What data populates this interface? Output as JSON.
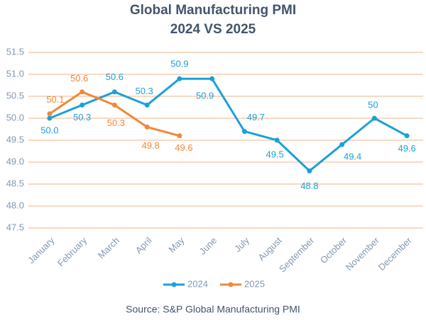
{
  "chart_data": {
    "type": "line",
    "title": "Global Manufacturing PMI",
    "subtitle": "2024 VS 2025",
    "source": "Source: S&P Global Manufacturing PMI",
    "categories": [
      "January",
      "February",
      "March",
      "April",
      "May",
      "June",
      "July",
      "August",
      "September",
      "October",
      "November",
      "December"
    ],
    "series": [
      {
        "name": "2024",
        "color": "#1ba1d8",
        "values": [
          50.0,
          50.3,
          50.6,
          50.3,
          50.9,
          50.9,
          49.7,
          49.5,
          48.8,
          49.4,
          50,
          49.6
        ],
        "value_labels": [
          "50.0",
          "50.3",
          "50.6",
          "50.3",
          "50.9",
          "50.9",
          "49.7",
          "49.5",
          "48.8",
          "49.4",
          "50",
          "49.6"
        ]
      },
      {
        "name": "2025",
        "color": "#f0883a",
        "values": [
          50.1,
          50.6,
          50.3,
          49.8,
          49.6,
          null,
          null,
          null,
          null,
          null,
          null,
          null
        ],
        "value_labels": [
          "50.1",
          "50.6",
          "50.3",
          "49.8",
          "49.6",
          null,
          null,
          null,
          null,
          null,
          null,
          null
        ]
      }
    ],
    "ylim": [
      47.5,
      51.5
    ],
    "yticks": [
      47.5,
      {
        "value": 48,
        "label": "48.0"
      },
      48.5,
      {
        "value": 49,
        "label": "49.0"
      },
      49.5,
      {
        "value": 50,
        "label": "50.0"
      },
      50.5,
      {
        "value": 51,
        "label": "51.0"
      },
      51.5
    ],
    "grid": true,
    "grid_color": "#f4b183",
    "legend": "bottom"
  }
}
